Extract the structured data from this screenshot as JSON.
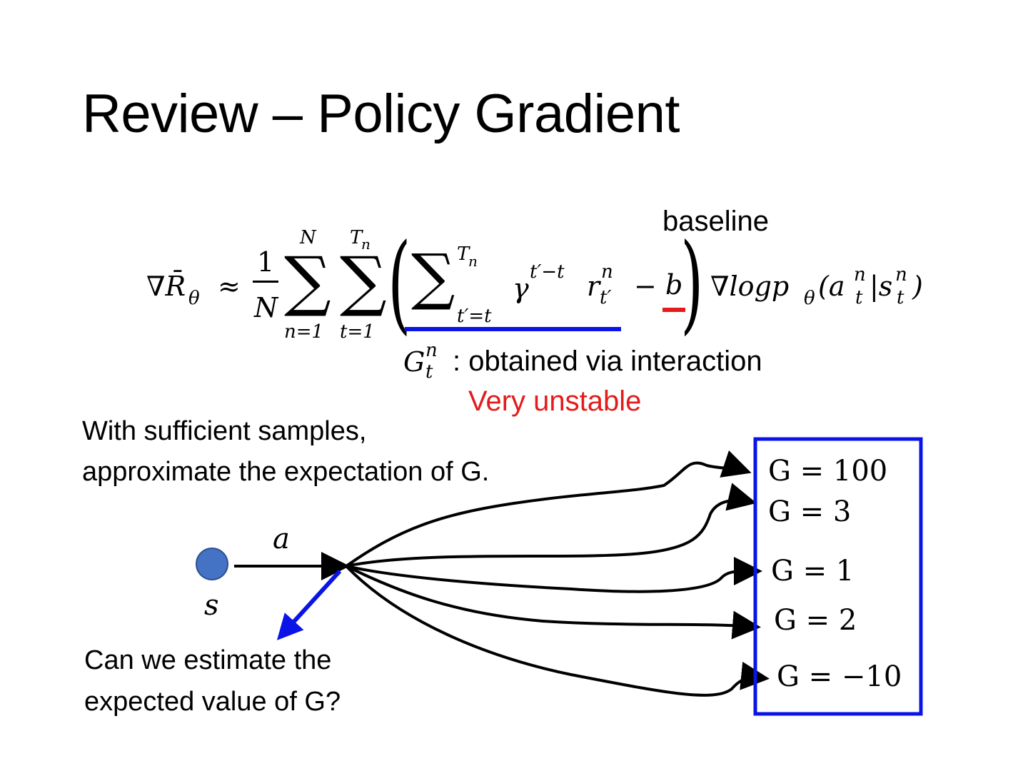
{
  "title": "Review – Policy Gradient",
  "formula": {
    "lhs": "∇R̄",
    "lhs_sub": "θ",
    "approx": "≈",
    "frac_num": "1",
    "frac_den": "N",
    "sum1_top": "N",
    "sum1_bottom": "n=1",
    "sum2_top": "T",
    "sum2_top_sub": "n",
    "sum2_bottom": "t=1",
    "sum_symbol": "∑",
    "open_paren": "(",
    "close_paren": ")",
    "inner_top": "T",
    "inner_top_sub": "n",
    "inner_bottom": "t′=t",
    "gamma": "γ",
    "gamma_exp": "t′−t",
    "r": "r",
    "r_sup": "n",
    "r_sub": "t′",
    "minus": "−",
    "b": "b",
    "grad_log": "∇logp",
    "grad_sub": "θ",
    "args_open": "(a",
    "a_sup": "n",
    "a_sub": "t",
    "bar_s": "|s",
    "s_sup": "n",
    "s_sub": "t",
    "args_close": ")"
  },
  "baseline_label": "baseline",
  "g_annotation": {
    "G": "G",
    "sup": "n",
    "sub": "t",
    "text": ": obtained via interaction"
  },
  "unstable_label": "Very unstable",
  "left_text": [
    "With sufficient samples,",
    "approximate the expectation of G."
  ],
  "question_text": [
    "Can we estimate the",
    "expected value of G?"
  ],
  "diagram": {
    "state_label": "s",
    "action_label": "a",
    "outcomes": [
      "G = 100",
      "G = 3",
      "G = 1",
      "G = 2",
      "G = −10"
    ]
  },
  "colors": {
    "blue": "#0a14e6",
    "red": "#e31b1b",
    "state_node": "#4472C4"
  }
}
